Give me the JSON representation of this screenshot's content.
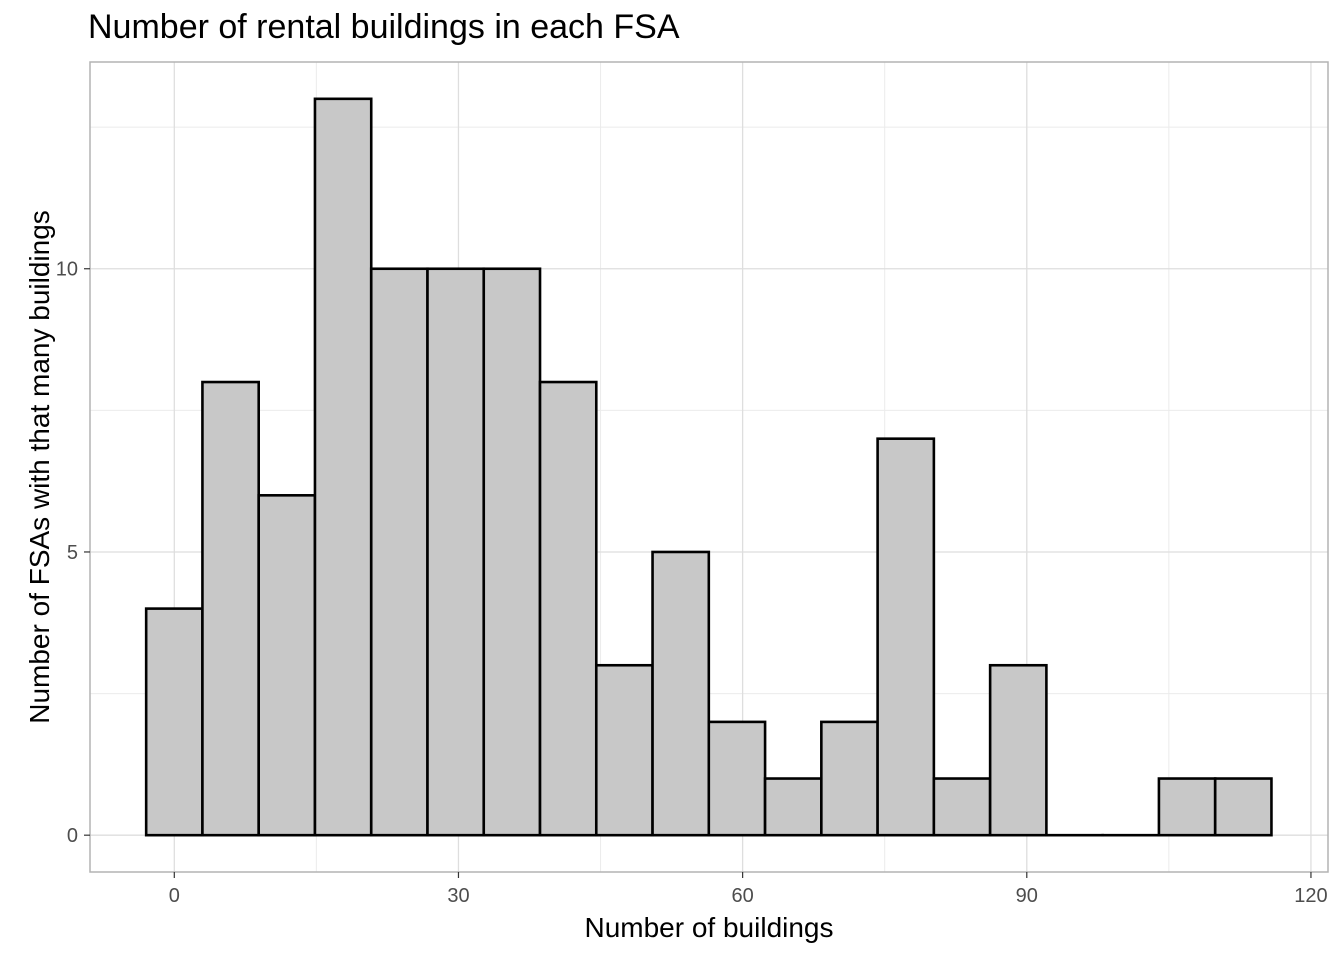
{
  "chart_data": {
    "type": "bar",
    "title": "Number of rental buildings in each FSA",
    "xlabel": "Number of buildings",
    "ylabel": "Number of FSAs with that many buildings",
    "bin_width": 5.94,
    "bins": [
      {
        "x_start": -2.97,
        "x_end": 2.97,
        "count": 4
      },
      {
        "x_start": 2.97,
        "x_end": 8.91,
        "count": 8
      },
      {
        "x_start": 8.91,
        "x_end": 14.85,
        "count": 6
      },
      {
        "x_start": 14.85,
        "x_end": 20.79,
        "count": 13
      },
      {
        "x_start": 20.79,
        "x_end": 26.73,
        "count": 10
      },
      {
        "x_start": 26.73,
        "x_end": 32.67,
        "count": 10
      },
      {
        "x_start": 32.67,
        "x_end": 38.61,
        "count": 10
      },
      {
        "x_start": 38.61,
        "x_end": 44.55,
        "count": 8
      },
      {
        "x_start": 44.55,
        "x_end": 50.49,
        "count": 3
      },
      {
        "x_start": 50.49,
        "x_end": 56.43,
        "count": 5
      },
      {
        "x_start": 56.43,
        "x_end": 62.37,
        "count": 2
      },
      {
        "x_start": 62.37,
        "x_end": 68.31,
        "count": 1
      },
      {
        "x_start": 68.31,
        "x_end": 74.25,
        "count": 2
      },
      {
        "x_start": 74.25,
        "x_end": 80.19,
        "count": 7
      },
      {
        "x_start": 80.19,
        "x_end": 86.13,
        "count": 1
      },
      {
        "x_start": 86.13,
        "x_end": 92.07,
        "count": 3
      },
      {
        "x_start": 92.07,
        "x_end": 98.01,
        "count": 0
      },
      {
        "x_start": 98.01,
        "x_end": 103.95,
        "count": 0
      },
      {
        "x_start": 103.95,
        "x_end": 109.89,
        "count": 1
      },
      {
        "x_start": 109.89,
        "x_end": 115.83,
        "count": 1
      }
    ],
    "xlim": [
      -8.9,
      121.8
    ],
    "ylim": [
      -0.65,
      13.65
    ],
    "x_ticks": [
      0,
      30,
      60,
      90,
      120
    ],
    "x_tick_labels": [
      "0",
      "30",
      "60",
      "90",
      "120"
    ],
    "y_ticks": [
      0,
      5,
      10
    ],
    "y_tick_labels": [
      "0",
      "5",
      "10"
    ],
    "grid": true,
    "legend": "none",
    "bar_fill": "#c8c8c8",
    "bar_stroke": "#000000"
  }
}
